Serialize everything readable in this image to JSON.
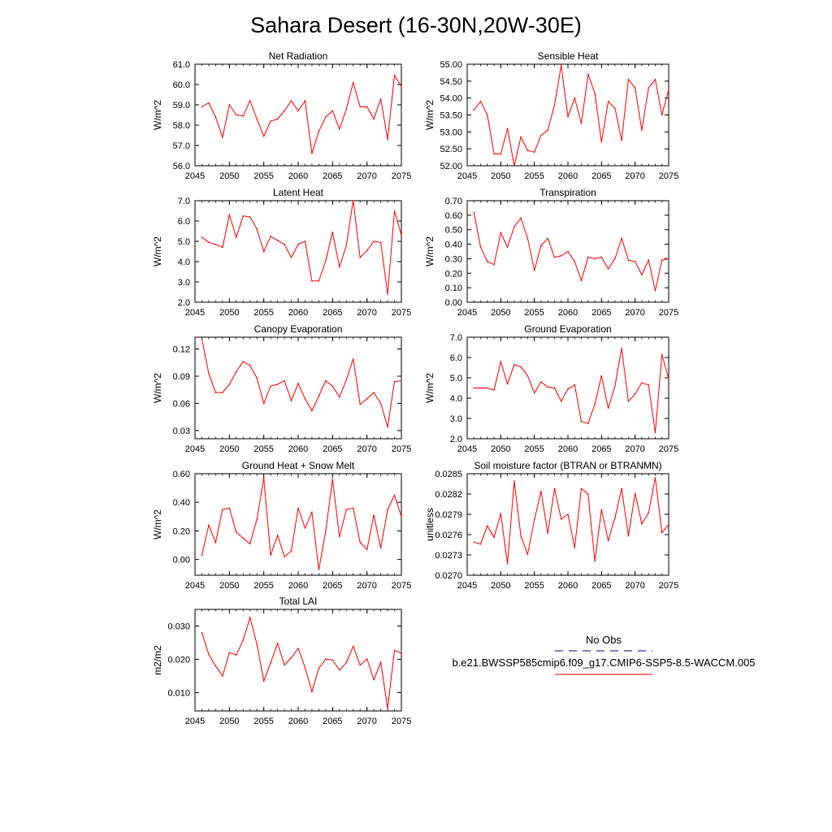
{
  "title": "Sahara Desert (16-30N,20W-30E)",
  "colors": {
    "model_line": "#ff0000",
    "obs_line": "#00008b",
    "axis": "#000000"
  },
  "legend": {
    "obs_label": "No Obs",
    "model_label": "b.e21.BWSSP585cmip6.f09_g17.CMIP6-SSP5-8.5-WACCM.005"
  },
  "chart_data": [
    {
      "type": "line",
      "title": "Net Radiation",
      "ylabel": "W/m^2",
      "xlim": [
        2045,
        2075
      ],
      "ylim": [
        56.0,
        61.0
      ],
      "xticks": [
        "2045",
        "2050",
        "2055",
        "2060",
        "2065",
        "2070",
        "2075"
      ],
      "yticks": [
        "56.0",
        "57.0",
        "58.0",
        "59.0",
        "60.0",
        "61.0"
      ],
      "x": [
        2046,
        2047,
        2048,
        2049,
        2050,
        2051,
        2052,
        2053,
        2054,
        2055,
        2056,
        2057,
        2058,
        2059,
        2060,
        2061,
        2062,
        2063,
        2064,
        2065,
        2066,
        2067,
        2068,
        2069,
        2070,
        2071,
        2072,
        2073,
        2074,
        2075
      ],
      "values": [
        58.9,
        59.1,
        58.4,
        57.4,
        59.0,
        58.5,
        58.45,
        59.2,
        58.3,
        57.45,
        58.2,
        58.3,
        58.7,
        59.2,
        58.7,
        59.2,
        56.6,
        57.7,
        58.4,
        58.7,
        57.8,
        58.8,
        60.1,
        58.9,
        58.9,
        58.3,
        59.3,
        57.3,
        60.45,
        59.9
      ]
    },
    {
      "type": "line",
      "title": "Sensible Heat",
      "ylabel": "W/m^2",
      "xlim": [
        2045,
        2075
      ],
      "ylim": [
        52.0,
        55.0
      ],
      "xticks": [
        "2045",
        "2050",
        "2055",
        "2060",
        "2065",
        "2070",
        "2075"
      ],
      "yticks": [
        "52.00",
        "52.50",
        "53.00",
        "53.50",
        "54.00",
        "54.50",
        "55.00"
      ],
      "x": [
        2046,
        2047,
        2048,
        2049,
        2050,
        2051,
        2052,
        2053,
        2054,
        2055,
        2056,
        2057,
        2058,
        2059,
        2060,
        2061,
        2062,
        2063,
        2064,
        2065,
        2066,
        2067,
        2068,
        2069,
        2070,
        2071,
        2072,
        2073,
        2074,
        2075
      ],
      "values": [
        53.65,
        53.9,
        53.5,
        52.35,
        52.35,
        53.1,
        52.0,
        52.85,
        52.45,
        52.4,
        52.9,
        53.05,
        53.8,
        54.95,
        53.45,
        54.0,
        53.25,
        54.7,
        54.15,
        52.7,
        53.9,
        53.7,
        52.75,
        54.55,
        54.3,
        53.05,
        54.3,
        54.55,
        53.5,
        54.25
      ]
    },
    {
      "type": "line",
      "title": "Latent Heat",
      "ylabel": "W/m^2",
      "xlim": [
        2045,
        2075
      ],
      "ylim": [
        2.0,
        7.0
      ],
      "xticks": [
        "2045",
        "2050",
        "2055",
        "2060",
        "2065",
        "2070",
        "2075"
      ],
      "yticks": [
        "2.0",
        "3.0",
        "4.0",
        "5.0",
        "6.0",
        "7.0"
      ],
      "x": [
        2046,
        2047,
        2048,
        2049,
        2050,
        2051,
        2052,
        2053,
        2054,
        2055,
        2056,
        2057,
        2058,
        2059,
        2060,
        2061,
        2062,
        2063,
        2064,
        2065,
        2066,
        2067,
        2068,
        2069,
        2070,
        2071,
        2072,
        2073,
        2074,
        2075
      ],
      "values": [
        5.2,
        4.95,
        4.85,
        4.7,
        6.3,
        5.2,
        6.25,
        6.2,
        5.6,
        4.5,
        5.25,
        5.05,
        4.85,
        4.2,
        4.85,
        5.0,
        3.05,
        3.05,
        4.05,
        5.45,
        3.75,
        4.8,
        7.0,
        4.2,
        4.55,
        5.0,
        4.95,
        2.4,
        6.5,
        5.3
      ]
    },
    {
      "type": "line",
      "title": "Transpiration",
      "ylabel": "W/m^2",
      "xlim": [
        2045,
        2075
      ],
      "ylim": [
        0.0,
        0.7
      ],
      "xticks": [
        "2045",
        "2050",
        "2055",
        "2060",
        "2065",
        "2070",
        "2075"
      ],
      "yticks": [
        "0.00",
        "0.10",
        "0.20",
        "0.30",
        "0.40",
        "0.50",
        "0.60",
        "0.70"
      ],
      "x": [
        2046,
        2047,
        2048,
        2049,
        2050,
        2051,
        2052,
        2053,
        2054,
        2055,
        2056,
        2057,
        2058,
        2059,
        2060,
        2061,
        2062,
        2063,
        2064,
        2065,
        2066,
        2067,
        2068,
        2069,
        2070,
        2071,
        2072,
        2073,
        2074,
        2075
      ],
      "values": [
        0.62,
        0.38,
        0.28,
        0.26,
        0.48,
        0.38,
        0.52,
        0.58,
        0.44,
        0.22,
        0.39,
        0.44,
        0.31,
        0.32,
        0.35,
        0.28,
        0.15,
        0.31,
        0.3,
        0.31,
        0.23,
        0.3,
        0.44,
        0.29,
        0.28,
        0.19,
        0.29,
        0.08,
        0.29,
        0.3
      ]
    },
    {
      "type": "line",
      "title": "Canopy Evaporation",
      "ylabel": "W/m^2",
      "xlim": [
        2045,
        2075
      ],
      "ylim": [
        0.021,
        0.133
      ],
      "xticks": [
        "2045",
        "2050",
        "2055",
        "2060",
        "2065",
        "2070",
        "2075"
      ],
      "yticks": [
        "0.03",
        "0.06",
        "0.09",
        "0.12"
      ],
      "x": [
        2046,
        2047,
        2048,
        2049,
        2050,
        2051,
        2052,
        2053,
        2054,
        2055,
        2056,
        2057,
        2058,
        2059,
        2060,
        2061,
        2062,
        2063,
        2064,
        2065,
        2066,
        2067,
        2068,
        2069,
        2070,
        2071,
        2072,
        2073,
        2074,
        2075
      ],
      "values": [
        0.131,
        0.093,
        0.072,
        0.072,
        0.081,
        0.095,
        0.106,
        0.102,
        0.088,
        0.06,
        0.079,
        0.081,
        0.085,
        0.063,
        0.082,
        0.065,
        0.052,
        0.068,
        0.085,
        0.079,
        0.067,
        0.086,
        0.109,
        0.059,
        0.065,
        0.072,
        0.06,
        0.034,
        0.084,
        0.085
      ]
    },
    {
      "type": "line",
      "title": "Ground Evaporation",
      "ylabel": "W/m^2",
      "xlim": [
        2045,
        2075
      ],
      "ylim": [
        2.0,
        7.0
      ],
      "xticks": [
        "2045",
        "2050",
        "2055",
        "2060",
        "2065",
        "2070",
        "2075"
      ],
      "yticks": [
        "2.0",
        "3.0",
        "4.0",
        "5.0",
        "6.0",
        "7.0"
      ],
      "x": [
        2046,
        2047,
        2048,
        2049,
        2050,
        2051,
        2052,
        2053,
        2054,
        2055,
        2056,
        2057,
        2058,
        2059,
        2060,
        2061,
        2062,
        2063,
        2064,
        2065,
        2066,
        2067,
        2068,
        2069,
        2070,
        2071,
        2072,
        2073,
        2074,
        2075
      ],
      "values": [
        4.5,
        4.5,
        4.5,
        4.4,
        5.8,
        4.7,
        5.65,
        5.55,
        5.1,
        4.25,
        4.8,
        4.55,
        4.5,
        3.85,
        4.45,
        4.65,
        2.85,
        2.75,
        3.7,
        5.1,
        3.5,
        4.6,
        6.45,
        3.85,
        4.2,
        4.75,
        4.65,
        2.3,
        6.15,
        4.95
      ]
    },
    {
      "type": "line",
      "title": "Ground Heat + Snow Melt",
      "ylabel": "W/m^2",
      "xlim": [
        2045,
        2075
      ],
      "ylim": [
        -0.11,
        0.6
      ],
      "xticks": [
        "2045",
        "2050",
        "2055",
        "2060",
        "2065",
        "2070",
        "2075"
      ],
      "yticks": [
        "0.00",
        "0.20",
        "0.40",
        "0.60"
      ],
      "x": [
        2046,
        2047,
        2048,
        2049,
        2050,
        2051,
        2052,
        2053,
        2054,
        2055,
        2056,
        2057,
        2058,
        2059,
        2060,
        2061,
        2062,
        2063,
        2064,
        2065,
        2066,
        2067,
        2068,
        2069,
        2070,
        2071,
        2072,
        2073,
        2074,
        2075
      ],
      "values": [
        0.03,
        0.24,
        0.12,
        0.35,
        0.36,
        0.19,
        0.15,
        0.11,
        0.28,
        0.57,
        0.03,
        0.17,
        0.02,
        0.06,
        0.36,
        0.22,
        0.33,
        -0.07,
        0.2,
        0.56,
        0.16,
        0.35,
        0.36,
        0.12,
        0.07,
        0.31,
        0.08,
        0.35,
        0.45,
        0.3
      ]
    },
    {
      "type": "line",
      "title": "Soil moisture factor (BTRAN or BTRANMN)",
      "ylabel": "unitless",
      "xlim": [
        2045,
        2075
      ],
      "ylim": [
        0.027,
        0.0285
      ],
      "xticks": [
        "2045",
        "2050",
        "2055",
        "2060",
        "2065",
        "2070",
        "2075"
      ],
      "yticks": [
        "0.0270",
        "0.0273",
        "0.0276",
        "0.0279",
        "0.0282",
        "0.0285"
      ],
      "x": [
        2046,
        2047,
        2048,
        2049,
        2050,
        2051,
        2052,
        2053,
        2054,
        2055,
        2056,
        2057,
        2058,
        2059,
        2060,
        2061,
        2062,
        2063,
        2064,
        2065,
        2066,
        2067,
        2068,
        2069,
        2070,
        2071,
        2072,
        2073,
        2074,
        2075
      ],
      "values": [
        0.02749,
        0.02746,
        0.02773,
        0.02756,
        0.02791,
        0.02717,
        0.02839,
        0.02758,
        0.02731,
        0.02782,
        0.02824,
        0.02762,
        0.02828,
        0.02783,
        0.0279,
        0.02741,
        0.02828,
        0.0282,
        0.02721,
        0.02797,
        0.02751,
        0.02785,
        0.02828,
        0.02758,
        0.02821,
        0.02776,
        0.02792,
        0.02844,
        0.02763,
        0.02775
      ]
    },
    {
      "type": "line",
      "title": "Total LAI",
      "ylabel": "m2/m2",
      "xlim": [
        2045,
        2075
      ],
      "ylim": [
        0.0045,
        0.035
      ],
      "xticks": [
        "2045",
        "2050",
        "2055",
        "2060",
        "2065",
        "2070",
        "2075"
      ],
      "yticks": [
        "0.010",
        "0.020",
        "0.030"
      ],
      "x": [
        2046,
        2047,
        2048,
        2049,
        2050,
        2051,
        2052,
        2053,
        2054,
        2055,
        2056,
        2057,
        2058,
        2059,
        2060,
        2061,
        2062,
        2063,
        2064,
        2065,
        2066,
        2067,
        2068,
        2069,
        2070,
        2071,
        2072,
        2073,
        2074,
        2075
      ],
      "values": [
        0.028,
        0.0215,
        0.018,
        0.015,
        0.022,
        0.0213,
        0.0258,
        0.0325,
        0.0245,
        0.0135,
        0.019,
        0.0248,
        0.0183,
        0.0205,
        0.0233,
        0.0175,
        0.0103,
        0.0173,
        0.0201,
        0.0198,
        0.0168,
        0.019,
        0.0239,
        0.0183,
        0.0201,
        0.0139,
        0.0191,
        0.0052,
        0.0227,
        0.0218
      ]
    }
  ]
}
